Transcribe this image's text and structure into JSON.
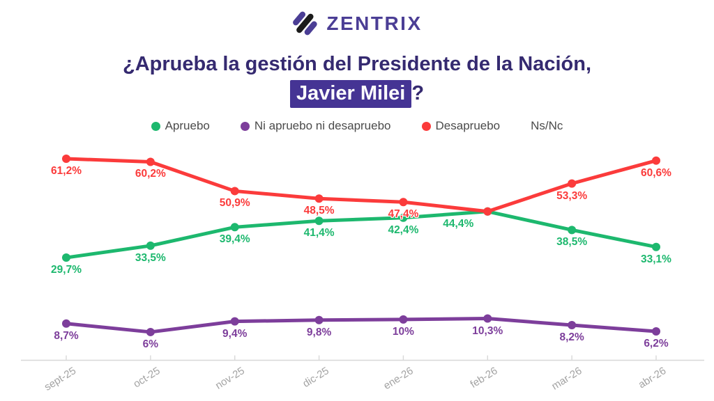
{
  "logo": {
    "text": "ZENTRIX"
  },
  "title": {
    "line1": "¿Aprueba la gestión del Presidente de la Nación,",
    "highlight": "Javier Milei",
    "suffix": "?"
  },
  "colors": {
    "approve": "#1db86e",
    "neutral": "#7d3e9b",
    "disapprove": "#fb3b3b",
    "title": "#352a70",
    "highlight_bg": "#453494",
    "axis_text": "#a3a3a3",
    "axis_line": "#d8d8d8"
  },
  "legend": [
    {
      "label": "Apruebo",
      "color": "#1db86e"
    },
    {
      "label": "Ni apruebo ni desapruebo",
      "color": "#7d3e9b"
    },
    {
      "label": "Desapruebo",
      "color": "#fb3b3b"
    },
    {
      "label": "Ns/Nc",
      "color": null
    }
  ],
  "chart_data": {
    "type": "line",
    "title": "¿Aprueba la gestión del Presidente de la Nación, Javier Milei?",
    "categories": [
      "sept-25",
      "oct-25",
      "nov-25",
      "dic-25",
      "ene-26",
      "feb-26",
      "mar-26",
      "abr-26"
    ],
    "series": [
      {
        "name": "Apruebo",
        "color": "#1db86e",
        "values": [
          29.7,
          33.5,
          39.4,
          41.4,
          42.4,
          44.4,
          38.5,
          33.1
        ],
        "labels": [
          "29,7%",
          "33,5%",
          "39,4%",
          "41,4%",
          "42,4%",
          "44,4%",
          "38,5%",
          "33,1%"
        ],
        "label_dx": [
          0,
          0,
          0,
          0,
          0,
          -42,
          0,
          0
        ]
      },
      {
        "name": "Ni apruebo ni desapruebo",
        "color": "#7d3e9b",
        "values": [
          8.7,
          6,
          9.4,
          9.8,
          10,
          10.3,
          8.2,
          6.2
        ],
        "labels": [
          "8,7%",
          "6%",
          "9,4%",
          "9,8%",
          "10%",
          "10,3%",
          "8,2%",
          "6,2%"
        ],
        "label_dx": [
          0,
          0,
          0,
          0,
          0,
          0,
          0,
          0
        ]
      },
      {
        "name": "Desapruebo",
        "color": "#fb3b3b",
        "values": [
          61.2,
          60.2,
          50.9,
          48.5,
          47.4,
          44.4,
          53.3,
          60.6
        ],
        "labels": [
          "61,2%",
          "60,2%",
          "50,9%",
          "48,5%",
          "47,4%",
          "",
          "53,3%",
          "60,6%"
        ],
        "label_dx": [
          0,
          0,
          0,
          0,
          0,
          0,
          0,
          0
        ]
      },
      {
        "name": "Ns/Nc",
        "color": null,
        "values": [],
        "labels": []
      }
    ],
    "ylim": [
      0,
      70
    ],
    "grid": false,
    "legend_position": "top",
    "xlabel": "",
    "ylabel": ""
  }
}
